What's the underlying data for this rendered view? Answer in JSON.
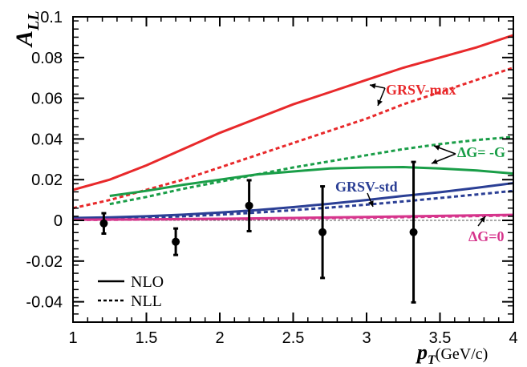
{
  "chart_data": {
    "type": "line",
    "title": "",
    "ylabel": "A",
    "ylabel_sub": "LL",
    "xlabel": "p",
    "xlabel_sub": "T",
    "xlabel_unit": "(GeV/c)",
    "xlim": [
      1,
      4
    ],
    "ylim": [
      -0.05,
      0.1
    ],
    "grid": false,
    "x_ticks": [
      1,
      1.5,
      2,
      2.5,
      3,
      3.5,
      4
    ],
    "x_tick_labels": [
      "1",
      "1.5",
      "2",
      "2.5",
      "3",
      "3.5",
      "4"
    ],
    "y_ticks": [
      -0.04,
      -0.02,
      0,
      0.02,
      0.04,
      0.06,
      0.08,
      0.1
    ],
    "y_tick_labels": [
      "-0.04",
      "-0.02",
      "0",
      "0.02",
      "0.04",
      "0.06",
      "0.08",
      "0.1"
    ],
    "zero_line": true,
    "series": [
      {
        "group": "GRSV-max",
        "style": "solid",
        "color": "#e8292b",
        "x": [
          1.0,
          1.25,
          1.5,
          1.75,
          2.0,
          2.25,
          2.5,
          2.75,
          3.0,
          3.25,
          3.5,
          3.75,
          4.0
        ],
        "y": [
          0.015,
          0.02,
          0.027,
          0.035,
          0.043,
          0.05,
          0.057,
          0.063,
          0.069,
          0.075,
          0.08,
          0.085,
          0.091
        ]
      },
      {
        "group": "GRSV-max",
        "style": "dotted",
        "color": "#e8292b",
        "x": [
          1.0,
          1.25,
          1.5,
          1.75,
          2.0,
          2.25,
          2.5,
          2.75,
          3.0,
          3.25,
          3.5,
          3.75,
          4.0
        ],
        "y": [
          0.006,
          0.01,
          0.015,
          0.02,
          0.026,
          0.032,
          0.038,
          0.044,
          0.05,
          0.057,
          0.063,
          0.069,
          0.075
        ]
      },
      {
        "group": "ΔG= -G",
        "style": "solid",
        "color": "#1a9e48",
        "x": [
          1.25,
          1.5,
          1.75,
          2.0,
          2.25,
          2.5,
          2.75,
          3.0,
          3.25,
          3.5,
          3.75,
          4.0
        ],
        "y": [
          0.012,
          0.0145,
          0.0175,
          0.02,
          0.0225,
          0.024,
          0.0255,
          0.026,
          0.0262,
          0.0255,
          0.0245,
          0.023
        ]
      },
      {
        "group": "ΔG= -G",
        "style": "dotted",
        "color": "#1a9e48",
        "x": [
          1.25,
          1.5,
          1.75,
          2.0,
          2.25,
          2.5,
          2.75,
          3.0,
          3.25,
          3.5,
          3.75,
          4.0
        ],
        "y": [
          0.008,
          0.0115,
          0.0155,
          0.019,
          0.0225,
          0.026,
          0.029,
          0.032,
          0.035,
          0.0375,
          0.0395,
          0.041
        ]
      },
      {
        "group": "GRSV-std",
        "style": "solid",
        "color": "#2b3f95",
        "x": [
          1.0,
          1.25,
          1.5,
          1.75,
          2.0,
          2.25,
          2.5,
          2.75,
          3.0,
          3.25,
          3.5,
          3.75,
          4.0
        ],
        "y": [
          0.0012,
          0.0015,
          0.002,
          0.0028,
          0.0038,
          0.005,
          0.0065,
          0.0082,
          0.01,
          0.012,
          0.0138,
          0.016,
          0.0183
        ]
      },
      {
        "group": "GRSV-std",
        "style": "dotted",
        "color": "#2b3f95",
        "x": [
          1.0,
          1.25,
          1.5,
          1.75,
          2.0,
          2.25,
          2.5,
          2.75,
          3.0,
          3.25,
          3.5,
          3.75,
          4.0
        ],
        "y": [
          0.0004,
          0.0008,
          0.0013,
          0.002,
          0.0028,
          0.0038,
          0.005,
          0.0063,
          0.0077,
          0.0093,
          0.011,
          0.0127,
          0.0145
        ]
      },
      {
        "group": "ΔG=0",
        "style": "solid",
        "color": "#d6358c",
        "x": [
          1.0,
          1.5,
          2.0,
          2.5,
          3.0,
          3.5,
          4.0
        ],
        "y": [
          0.0003,
          0.0005,
          0.0008,
          0.0012,
          0.0017,
          0.0022,
          0.0027
        ]
      },
      {
        "group": "ΔG=0",
        "style": "dotted",
        "color": "#d6358c",
        "x": [
          1.0,
          1.5,
          2.0,
          2.5,
          3.0,
          3.5,
          4.0
        ],
        "y": [
          0.0002,
          0.0004,
          0.0006,
          0.0009,
          0.0013,
          0.0018,
          0.0024
        ]
      }
    ],
    "points": {
      "color": "#000000",
      "x": [
        1.21,
        1.7,
        2.2,
        2.7,
        3.32
      ],
      "y": [
        -0.0015,
        -0.0105,
        0.0072,
        -0.0058,
        -0.0058
      ],
      "y_err": [
        0.005,
        0.0065,
        0.0125,
        0.0225,
        0.0345
      ]
    },
    "annotations": [
      {
        "text": "GRSV-max",
        "color": "#e8292b"
      },
      {
        "text": "ΔG= -G",
        "color": "#1a9e48"
      },
      {
        "text": "GRSV-std",
        "color": "#2b3f95"
      },
      {
        "text": "ΔG=0",
        "color": "#d6358c"
      }
    ],
    "legend": {
      "placement": "bottom-left",
      "entries": [
        {
          "label": "NLO",
          "style": "solid"
        },
        {
          "label": "NLL",
          "style": "dotted"
        }
      ]
    }
  }
}
